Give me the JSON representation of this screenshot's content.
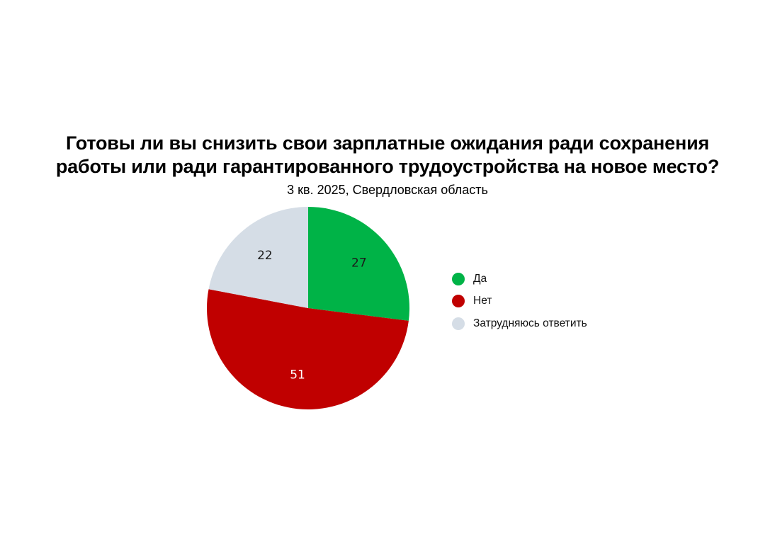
{
  "chart_data": {
    "type": "pie",
    "title_lines": [
      "Готовы ли вы снизить свои зарплатные ожидания ради сохранения",
      "работы или ради гарантированного трудоустройства на новое место?"
    ],
    "subtitle": "3 кв. 2025, Свердловская область",
    "slices": [
      {
        "label": "Да",
        "value": 27,
        "color": "#00b347",
        "label_color": "#1a1a1a"
      },
      {
        "label": "Нет",
        "value": 51,
        "color": "#c00000",
        "label_color": "#ffffff"
      },
      {
        "label": "Затрудняюсь ответить",
        "value": 22,
        "color": "#d5dde6",
        "label_color": "#1a1a1a"
      }
    ],
    "start_angle_deg": 0,
    "direction": "clockwise",
    "legend_position": "right"
  }
}
